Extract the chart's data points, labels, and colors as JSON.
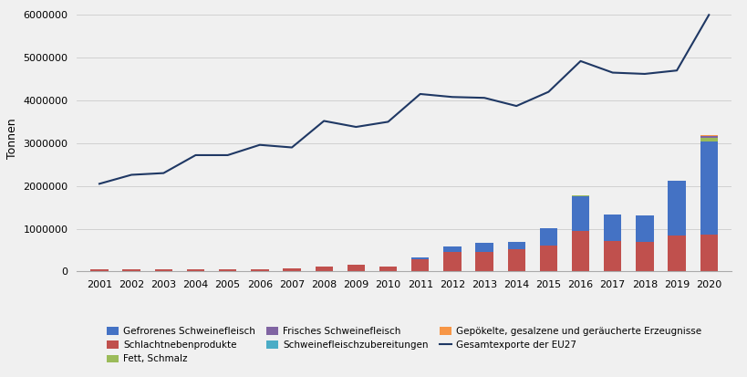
{
  "years": [
    2001,
    2002,
    2003,
    2004,
    2005,
    2006,
    2007,
    2008,
    2009,
    2010,
    2011,
    2012,
    2013,
    2014,
    2015,
    2016,
    2017,
    2018,
    2019,
    2020
  ],
  "gefroren": [
    0,
    0,
    0,
    0,
    0,
    0,
    0,
    0,
    0,
    0,
    50000,
    130000,
    200000,
    170000,
    420000,
    800000,
    620000,
    610000,
    1270000,
    2170000
  ],
  "schlachtnebenprodukte": [
    50000,
    50000,
    40000,
    40000,
    60000,
    50000,
    80000,
    120000,
    150000,
    120000,
    280000,
    450000,
    460000,
    520000,
    600000,
    950000,
    710000,
    690000,
    850000,
    870000
  ],
  "fett_schmalz": [
    0,
    0,
    0,
    0,
    0,
    0,
    0,
    0,
    0,
    0,
    0,
    0,
    0,
    0,
    0,
    20000,
    0,
    0,
    0,
    80000
  ],
  "frisches": [
    0,
    0,
    0,
    0,
    0,
    0,
    0,
    0,
    0,
    0,
    0,
    0,
    0,
    0,
    0,
    0,
    0,
    0,
    0,
    50000
  ],
  "zubereitungen": [
    0,
    0,
    0,
    0,
    0,
    0,
    0,
    0,
    0,
    0,
    0,
    0,
    0,
    0,
    0,
    0,
    0,
    0,
    0,
    5000
  ],
  "gepoekelt": [
    0,
    0,
    0,
    0,
    0,
    0,
    0,
    0,
    0,
    0,
    0,
    0,
    0,
    0,
    0,
    0,
    0,
    0,
    0,
    5000
  ],
  "gesamtexporte": [
    2050000,
    2260000,
    2300000,
    2720000,
    2720000,
    2960000,
    2900000,
    3520000,
    3380000,
    3500000,
    4150000,
    4080000,
    4060000,
    3870000,
    4200000,
    4920000,
    4650000,
    4620000,
    4700000,
    6000000
  ],
  "colors": {
    "gefroren": "#4472C4",
    "schlachtnebenprodukte": "#C0504D",
    "fett_schmalz": "#9BBB59",
    "frisches": "#8064A2",
    "zubereitungen": "#4BACC6",
    "gepoekelt": "#F79646"
  },
  "line_color": "#1F3864",
  "legend_labels": {
    "gefroren": "Gefrorenes Schweinefleisch",
    "schlachtnebenprodukte": "Schlachtnebenprodukte",
    "fett_schmalz": "Fett, Schmalz",
    "frisches": "Frisches Schweinefleisch",
    "zubereitungen": "Schweinefleischzubereitungen",
    "gepoekelt": "Gepökelte, gesalzene und geräucherte Erzeugnisse",
    "gesamtexporte": "Gesamtexporte der EU27"
  },
  "ylabel": "Tonnen",
  "ylim": [
    0,
    6200000
  ],
  "yticks": [
    0,
    1000000,
    2000000,
    3000000,
    4000000,
    5000000,
    6000000
  ],
  "fig_facecolor": "#f0f0f0",
  "plot_facecolor": "#f0f0f0"
}
